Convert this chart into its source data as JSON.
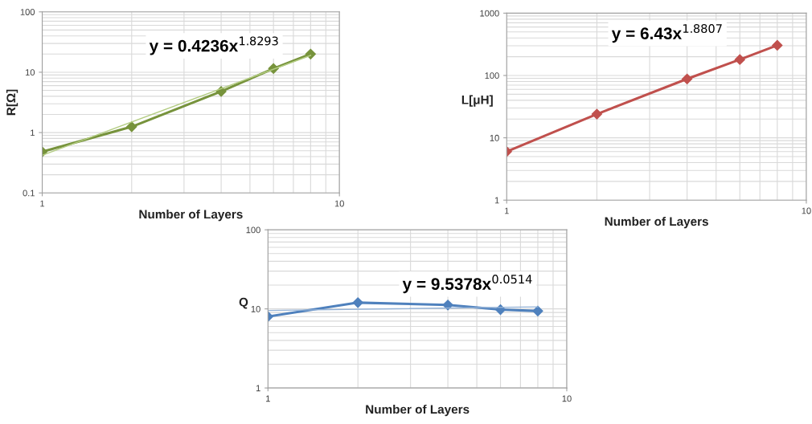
{
  "chart_data": [
    {
      "type": "line",
      "xlabel": "Number of Layers",
      "ylabel": "R[Ω]",
      "log": "xy",
      "grid": true,
      "xlim": [
        1,
        10
      ],
      "xticks": [
        1,
        10
      ],
      "ylim": [
        0.1,
        100
      ],
      "yticks": [
        0.1,
        1,
        10,
        100
      ],
      "annotations": [
        "y = 0.4236x$^{1.8293}$"
      ],
      "series": [
        {
          "color": "#77933c",
          "marker": "diamond",
          "x": [
            1,
            2,
            4,
            6,
            8
          ],
          "values": [
            0.48,
            1.25,
            4.8,
            11.5,
            20
          ]
        },
        {
          "color": "#b3cc82",
          "marker": "none",
          "x": [
            1,
            8
          ],
          "values": [
            0.42,
            19
          ]
        }
      ]
    },
    {
      "type": "line",
      "xlabel": "Number of Layers",
      "ylabel": "L[μH]",
      "log": "xy",
      "grid": true,
      "xlim": [
        1,
        10
      ],
      "xticks": [
        1,
        10
      ],
      "ylim": [
        1,
        1000
      ],
      "yticks": [
        1,
        10,
        100,
        1000
      ],
      "annotations": [
        "y = 6.43x$^{1.8807}$"
      ],
      "series": [
        {
          "color": "#c0504d",
          "marker": "diamond",
          "x": [
            1,
            2,
            4,
            6,
            8
          ],
          "values": [
            6,
            24,
            88,
            180,
            305
          ]
        }
      ]
    },
    {
      "type": "line",
      "xlabel": "Number of Layers",
      "ylabel": "Q",
      "log": "xy",
      "grid": true,
      "xlim": [
        1,
        10
      ],
      "xticks": [
        1,
        10
      ],
      "ylim": [
        1,
        100
      ],
      "yticks": [
        1,
        10,
        100
      ],
      "annotations": [
        "y = 9.5378x$^{0.0514}$"
      ],
      "series": [
        {
          "color": "#4f81bd",
          "marker": "diamond",
          "x": [
            1,
            2,
            4,
            6,
            8
          ],
          "values": [
            8,
            12,
            11.2,
            9.8,
            9.4
          ]
        },
        {
          "color": "#95b3d7",
          "marker": "none",
          "x": [
            1,
            8
          ],
          "values": [
            9.54,
            10.6
          ]
        }
      ]
    }
  ]
}
